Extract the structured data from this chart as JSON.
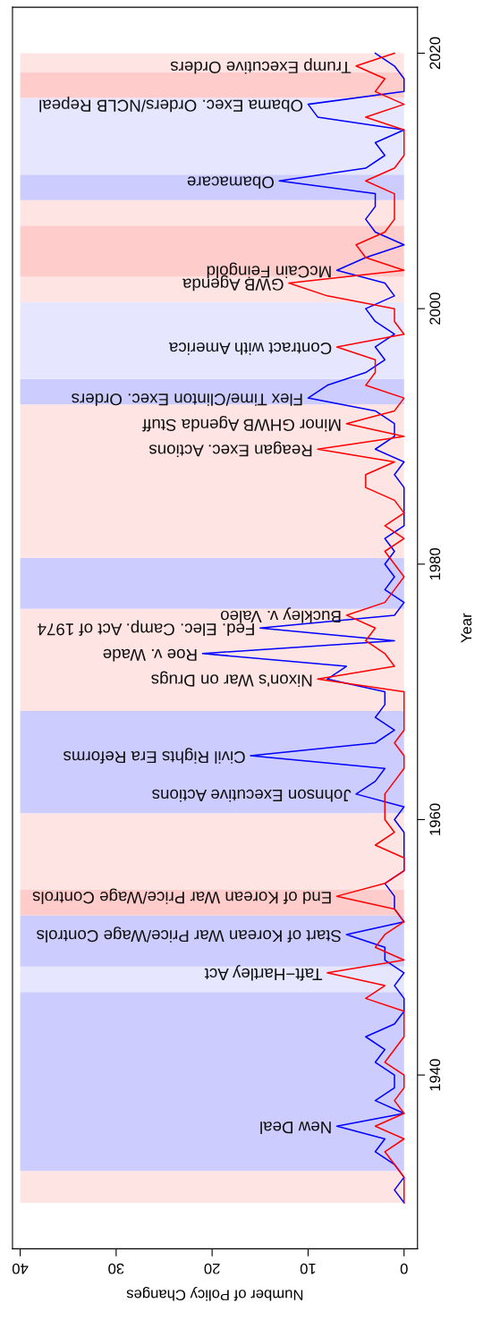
{
  "chart_data": {
    "type": "line",
    "orientation": "horizontal",
    "xlabel": "Number of Policy Changes",
    "ylabel": "Year",
    "x": [
      1930,
      1931,
      1932,
      1933,
      1934,
      1935,
      1936,
      1937,
      1938,
      1939,
      1940,
      1941,
      1942,
      1943,
      1944,
      1945,
      1946,
      1947,
      1948,
      1949,
      1950,
      1951,
      1952,
      1953,
      1954,
      1955,
      1956,
      1957,
      1958,
      1959,
      1960,
      1961,
      1962,
      1963,
      1964,
      1965,
      1966,
      1967,
      1968,
      1969,
      1970,
      1971,
      1972,
      1973,
      1974,
      1975,
      1976,
      1977,
      1978,
      1979,
      1980,
      1981,
      1982,
      1983,
      1984,
      1985,
      1986,
      1987,
      1988,
      1989,
      1990,
      1991,
      1992,
      1993,
      1994,
      1995,
      1996,
      1997,
      1998,
      1999,
      2000,
      2001,
      2002,
      2003,
      2004,
      2005,
      2006,
      2007,
      2008,
      2009,
      2010,
      2011,
      2012,
      2013,
      2014,
      2015,
      2016,
      2017,
      2018,
      2019,
      2020
    ],
    "series": [
      {
        "color": "#0000ff",
        "values": [
          0,
          1,
          0,
          1,
          3,
          2,
          7,
          0,
          3,
          1,
          1,
          3,
          2,
          4,
          1,
          0,
          0,
          1,
          0,
          2,
          2,
          6,
          0,
          1,
          1,
          2,
          0,
          0,
          0,
          0,
          1,
          0,
          5,
          3,
          2,
          16,
          3,
          1,
          3,
          2,
          2,
          8,
          6,
          21,
          1,
          15,
          1,
          0,
          2,
          1,
          2,
          1,
          2,
          0,
          0,
          0,
          0,
          1,
          0,
          3,
          1,
          1,
          3,
          10,
          8,
          4,
          2,
          3,
          1,
          3,
          4,
          1,
          2,
          7,
          4,
          0,
          3,
          4,
          3,
          3,
          13,
          4,
          2,
          3,
          0,
          9,
          10,
          0,
          0,
          1,
          3
        ]
      },
      {
        "color": "#ff0000",
        "values": [
          0,
          0,
          0,
          1,
          2,
          0,
          3,
          0,
          1,
          0,
          0,
          2,
          1,
          0,
          0,
          0,
          4,
          2,
          8,
          0,
          3,
          2,
          0,
          1,
          7,
          2,
          0,
          0,
          3,
          1,
          2,
          2,
          2,
          1,
          0,
          0,
          1,
          0,
          0,
          0,
          0,
          9,
          1,
          2,
          4,
          3,
          6,
          2,
          1,
          0,
          1,
          2,
          0,
          2,
          0,
          1,
          4,
          4,
          1,
          9,
          0,
          6,
          1,
          0,
          4,
          3,
          3,
          7,
          0,
          1,
          1,
          8,
          12,
          0,
          4,
          5,
          2,
          1,
          1,
          1,
          4,
          1,
          0,
          0,
          0,
          4,
          0,
          3,
          2,
          5,
          1
        ]
      }
    ],
    "xlim": [
      40.8,
      -1.4
    ],
    "xticks": [
      0,
      10,
      20,
      30,
      40
    ],
    "ylim": [
      1926.4,
      2023.6
    ],
    "yticks": [
      1940,
      1960,
      1980,
      2000,
      2020
    ],
    "bands": [
      {
        "axis": "y",
        "from": 1930,
        "to": 1932.5,
        "color": "#ffe4e4"
      },
      {
        "axis": "y",
        "from": 1932.5,
        "to": 1946.5,
        "color": "#ccccff"
      },
      {
        "axis": "y",
        "from": 1946.5,
        "to": 1948.5,
        "color": "#e6e6ff"
      },
      {
        "axis": "y",
        "from": 1948.5,
        "to": 1952.5,
        "color": "#ccccff"
      },
      {
        "axis": "y",
        "from": 1952.5,
        "to": 1954.5,
        "color": "#ffcccc"
      },
      {
        "axis": "y",
        "from": 1954.5,
        "to": 1960.5,
        "color": "#ffe4e4"
      },
      {
        "axis": "y",
        "from": 1960.5,
        "to": 1968.5,
        "color": "#ccccff"
      },
      {
        "axis": "y",
        "from": 1968.5,
        "to": 1976.5,
        "color": "#ffe4e4"
      },
      {
        "axis": "y",
        "from": 1976.5,
        "to": 1980.5,
        "color": "#ccccff"
      },
      {
        "axis": "y",
        "from": 1980.5,
        "to": 1992.5,
        "color": "#ffe4e4"
      },
      {
        "axis": "y",
        "from": 1992.5,
        "to": 1994.5,
        "color": "#ccccff"
      },
      {
        "axis": "y",
        "from": 1994.5,
        "to": 2000.5,
        "color": "#e6e6ff"
      },
      {
        "axis": "y",
        "from": 2000.5,
        "to": 2002.5,
        "color": "#ffe4e4"
      },
      {
        "axis": "y",
        "from": 2002.5,
        "to": 2006.5,
        "color": "#ffcccc"
      },
      {
        "axis": "y",
        "from": 2006.5,
        "to": 2008.5,
        "color": "#ffe4e4"
      },
      {
        "axis": "y",
        "from": 2008.5,
        "to": 2010.5,
        "color": "#ccccff"
      },
      {
        "axis": "y",
        "from": 2010.5,
        "to": 2016.5,
        "color": "#e6e6ff"
      },
      {
        "axis": "y",
        "from": 2016.5,
        "to": 2018.5,
        "color": "#ffcccc"
      },
      {
        "axis": "y",
        "from": 2018.5,
        "to": 2020,
        "color": "#ffe4e4"
      }
    ],
    "annotations": [
      {
        "text": "New Deal",
        "x": 7,
        "y": 1936
      },
      {
        "text": "Taft−Hartley Act",
        "x": 8,
        "y": 1948
      },
      {
        "text": "Start of Korean War Price/Wage Controls",
        "x": 6,
        "y": 1951
      },
      {
        "text": "End of Korean War Price/Wage Controls",
        "x": 7,
        "y": 1954
      },
      {
        "text": "Johnson Executive Actions",
        "x": 5,
        "y": 1962
      },
      {
        "text": "Civil Rights Era Reforms",
        "x": 16,
        "y": 1965
      },
      {
        "text": "Nixon's War on Drugs",
        "x": 9,
        "y": 1971
      },
      {
        "text": "Roe v. Wade",
        "x": 21,
        "y": 1973
      },
      {
        "text": "Fed. Elec. Camp. Act of 1974",
        "x": 15,
        "y": 1975
      },
      {
        "text": "Buckley v. Valeo",
        "x": 6,
        "y": 1976
      },
      {
        "text": "Reagan Exec. Actions",
        "x": 9,
        "y": 1989
      },
      {
        "text": "Minor GHWB Agenda Stuff",
        "x": 6,
        "y": 1991
      },
      {
        "text": "Flex Time/Clinton Exec. Orders",
        "x": 10,
        "y": 1993
      },
      {
        "text": "Contract with America",
        "x": 7,
        "y": 1997
      },
      {
        "text": "GWB Agenda",
        "x": 12,
        "y": 2002
      },
      {
        "text": "McCain Feingold",
        "x": 7,
        "y": 2003
      },
      {
        "text": "Obamacare",
        "x": 13,
        "y": 2010
      },
      {
        "text": "Obama Exec. Orders/NCLB Repeal",
        "x": 10,
        "y": 2016
      },
      {
        "text": "Trump Executive Orders",
        "x": 5,
        "y": 2019
      }
    ],
    "grid": false,
    "marker": "none",
    "line_style": "solid"
  }
}
